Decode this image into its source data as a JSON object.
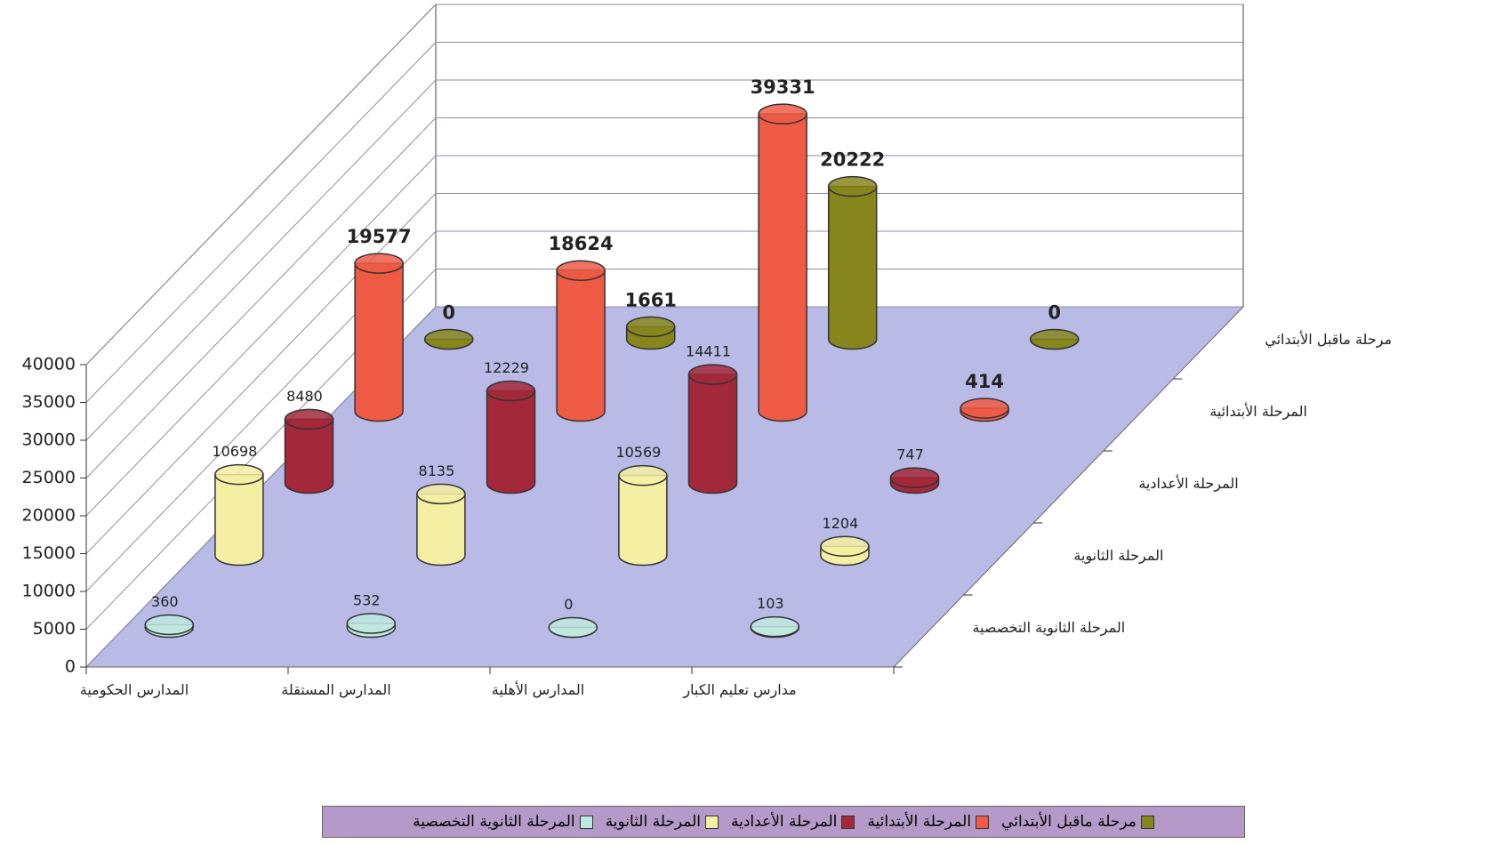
{
  "chart_data": {
    "type": "bar3d",
    "categories": [
      "المدارس الحكومية",
      "المدارس المستقلة",
      "المدارس الأهلية",
      "مدارس تعليم الكبار"
    ],
    "series": [
      {
        "name": "المرحلة الثانوية التخصصية",
        "color": "#bfe8e0",
        "values": [
          360,
          532,
          0,
          103
        ]
      },
      {
        "name": "المرحلة الثانوية",
        "color": "#f4efa2",
        "values": [
          10698,
          8135,
          10569,
          1204
        ]
      },
      {
        "name": "المرحلة الأعدادية",
        "color": "#a3283a",
        "values": [
          8480,
          12229,
          14411,
          747
        ]
      },
      {
        "name": "المرحلة الأبتدائية",
        "color": "#ef5a45",
        "values": [
          19577,
          18624,
          39331,
          414
        ]
      },
      {
        "name": "مرحلة ماقبل الأبتدائي",
        "color": "#87861c",
        "values": [
          0,
          1661,
          20222,
          0
        ]
      }
    ],
    "ylim": [
      0,
      40000
    ],
    "yticks": [
      0,
      5000,
      10000,
      15000,
      20000,
      25000,
      30000,
      35000,
      40000
    ],
    "grid": true
  }
}
